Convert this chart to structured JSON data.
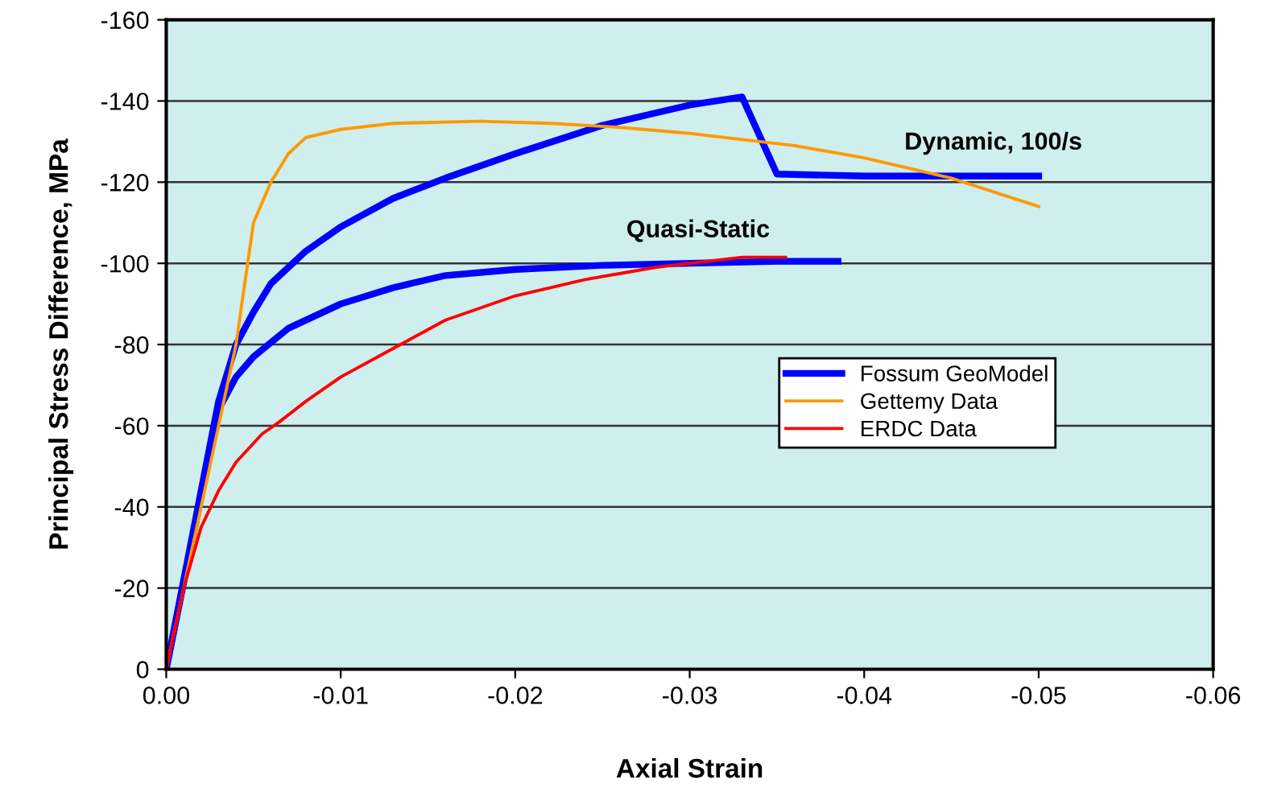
{
  "chart_data": {
    "type": "line",
    "xlabel": "Axial Strain",
    "ylabel": "Principal Stress Difference, MPa",
    "xlim": [
      0,
      -0.06
    ],
    "ylim": [
      0,
      -160
    ],
    "xticks": [
      {
        "value": 0,
        "label": "0.00"
      },
      {
        "value": -0.01,
        "label": "-0.01"
      },
      {
        "value": -0.02,
        "label": "-0.02"
      },
      {
        "value": -0.03,
        "label": "-0.03"
      },
      {
        "value": -0.04,
        "label": "-0.04"
      },
      {
        "value": -0.05,
        "label": "-0.05"
      },
      {
        "value": -0.06,
        "label": "-0.06"
      }
    ],
    "yticks": [
      0,
      -20,
      -40,
      -60,
      -80,
      -100,
      -120,
      -140,
      -160
    ],
    "grid": "y",
    "legend": "right",
    "marker": "none",
    "line_style": "solid",
    "series": [
      {
        "name": "Fossum GeoModel",
        "color": "#0000ff",
        "x": [
          0,
          -0.003,
          -0.004,
          -0.005,
          -0.006,
          -0.008,
          -0.01,
          -0.013,
          -0.016,
          -0.02,
          -0.025,
          -0.03,
          -0.033,
          -0.035,
          -0.04,
          -0.05,
          null,
          0,
          -0.003,
          -0.004,
          -0.005,
          -0.007,
          -0.01,
          -0.013,
          -0.016,
          -0.02,
          -0.025,
          -0.03,
          -0.035,
          -0.0385
        ],
        "values": [
          0,
          -66,
          -80,
          -88,
          -95,
          -103,
          -109,
          -116,
          -121,
          -127,
          -134,
          -139,
          -141,
          -122,
          -121.5,
          -121.5,
          null,
          0,
          -64,
          -72,
          -77,
          -84,
          -90,
          -94,
          -97,
          -98.5,
          -99.5,
          -100,
          -100.5,
          -100.5
        ]
      },
      {
        "name": "Gettemy Data",
        "color": "#ff9900",
        "x": [
          0,
          -0.003,
          -0.004,
          -0.0045,
          -0.005,
          -0.006,
          -0.007,
          -0.008,
          -0.01,
          -0.013,
          -0.018,
          -0.022,
          -0.026,
          -0.03,
          -0.033,
          -0.036,
          -0.04,
          -0.045,
          -0.05
        ],
        "values": [
          0,
          -60,
          -80,
          -95,
          -110,
          -120,
          -127,
          -131,
          -133,
          -134.5,
          -135,
          -134.5,
          -133.5,
          -132,
          -130.5,
          -129,
          -126,
          -121,
          -114
        ]
      },
      {
        "name": "ERDC Data",
        "color": "#ff0000",
        "x": [
          0,
          -0.001,
          -0.002,
          -0.003,
          -0.004,
          -0.0055,
          -0.0065,
          -0.008,
          -0.01,
          -0.013,
          -0.016,
          -0.02,
          -0.024,
          -0.028,
          -0.03,
          -0.033,
          -0.0355
        ],
        "values": [
          0,
          -20,
          -35,
          -44,
          -51,
          -58,
          -61,
          -66,
          -72,
          -79,
          -86,
          -92,
          -96,
          -99,
          -100,
          -101.5,
          -101.5
        ]
      }
    ],
    "annotations": [
      "Dynamic, 100/s",
      "Quasi-Static"
    ]
  }
}
